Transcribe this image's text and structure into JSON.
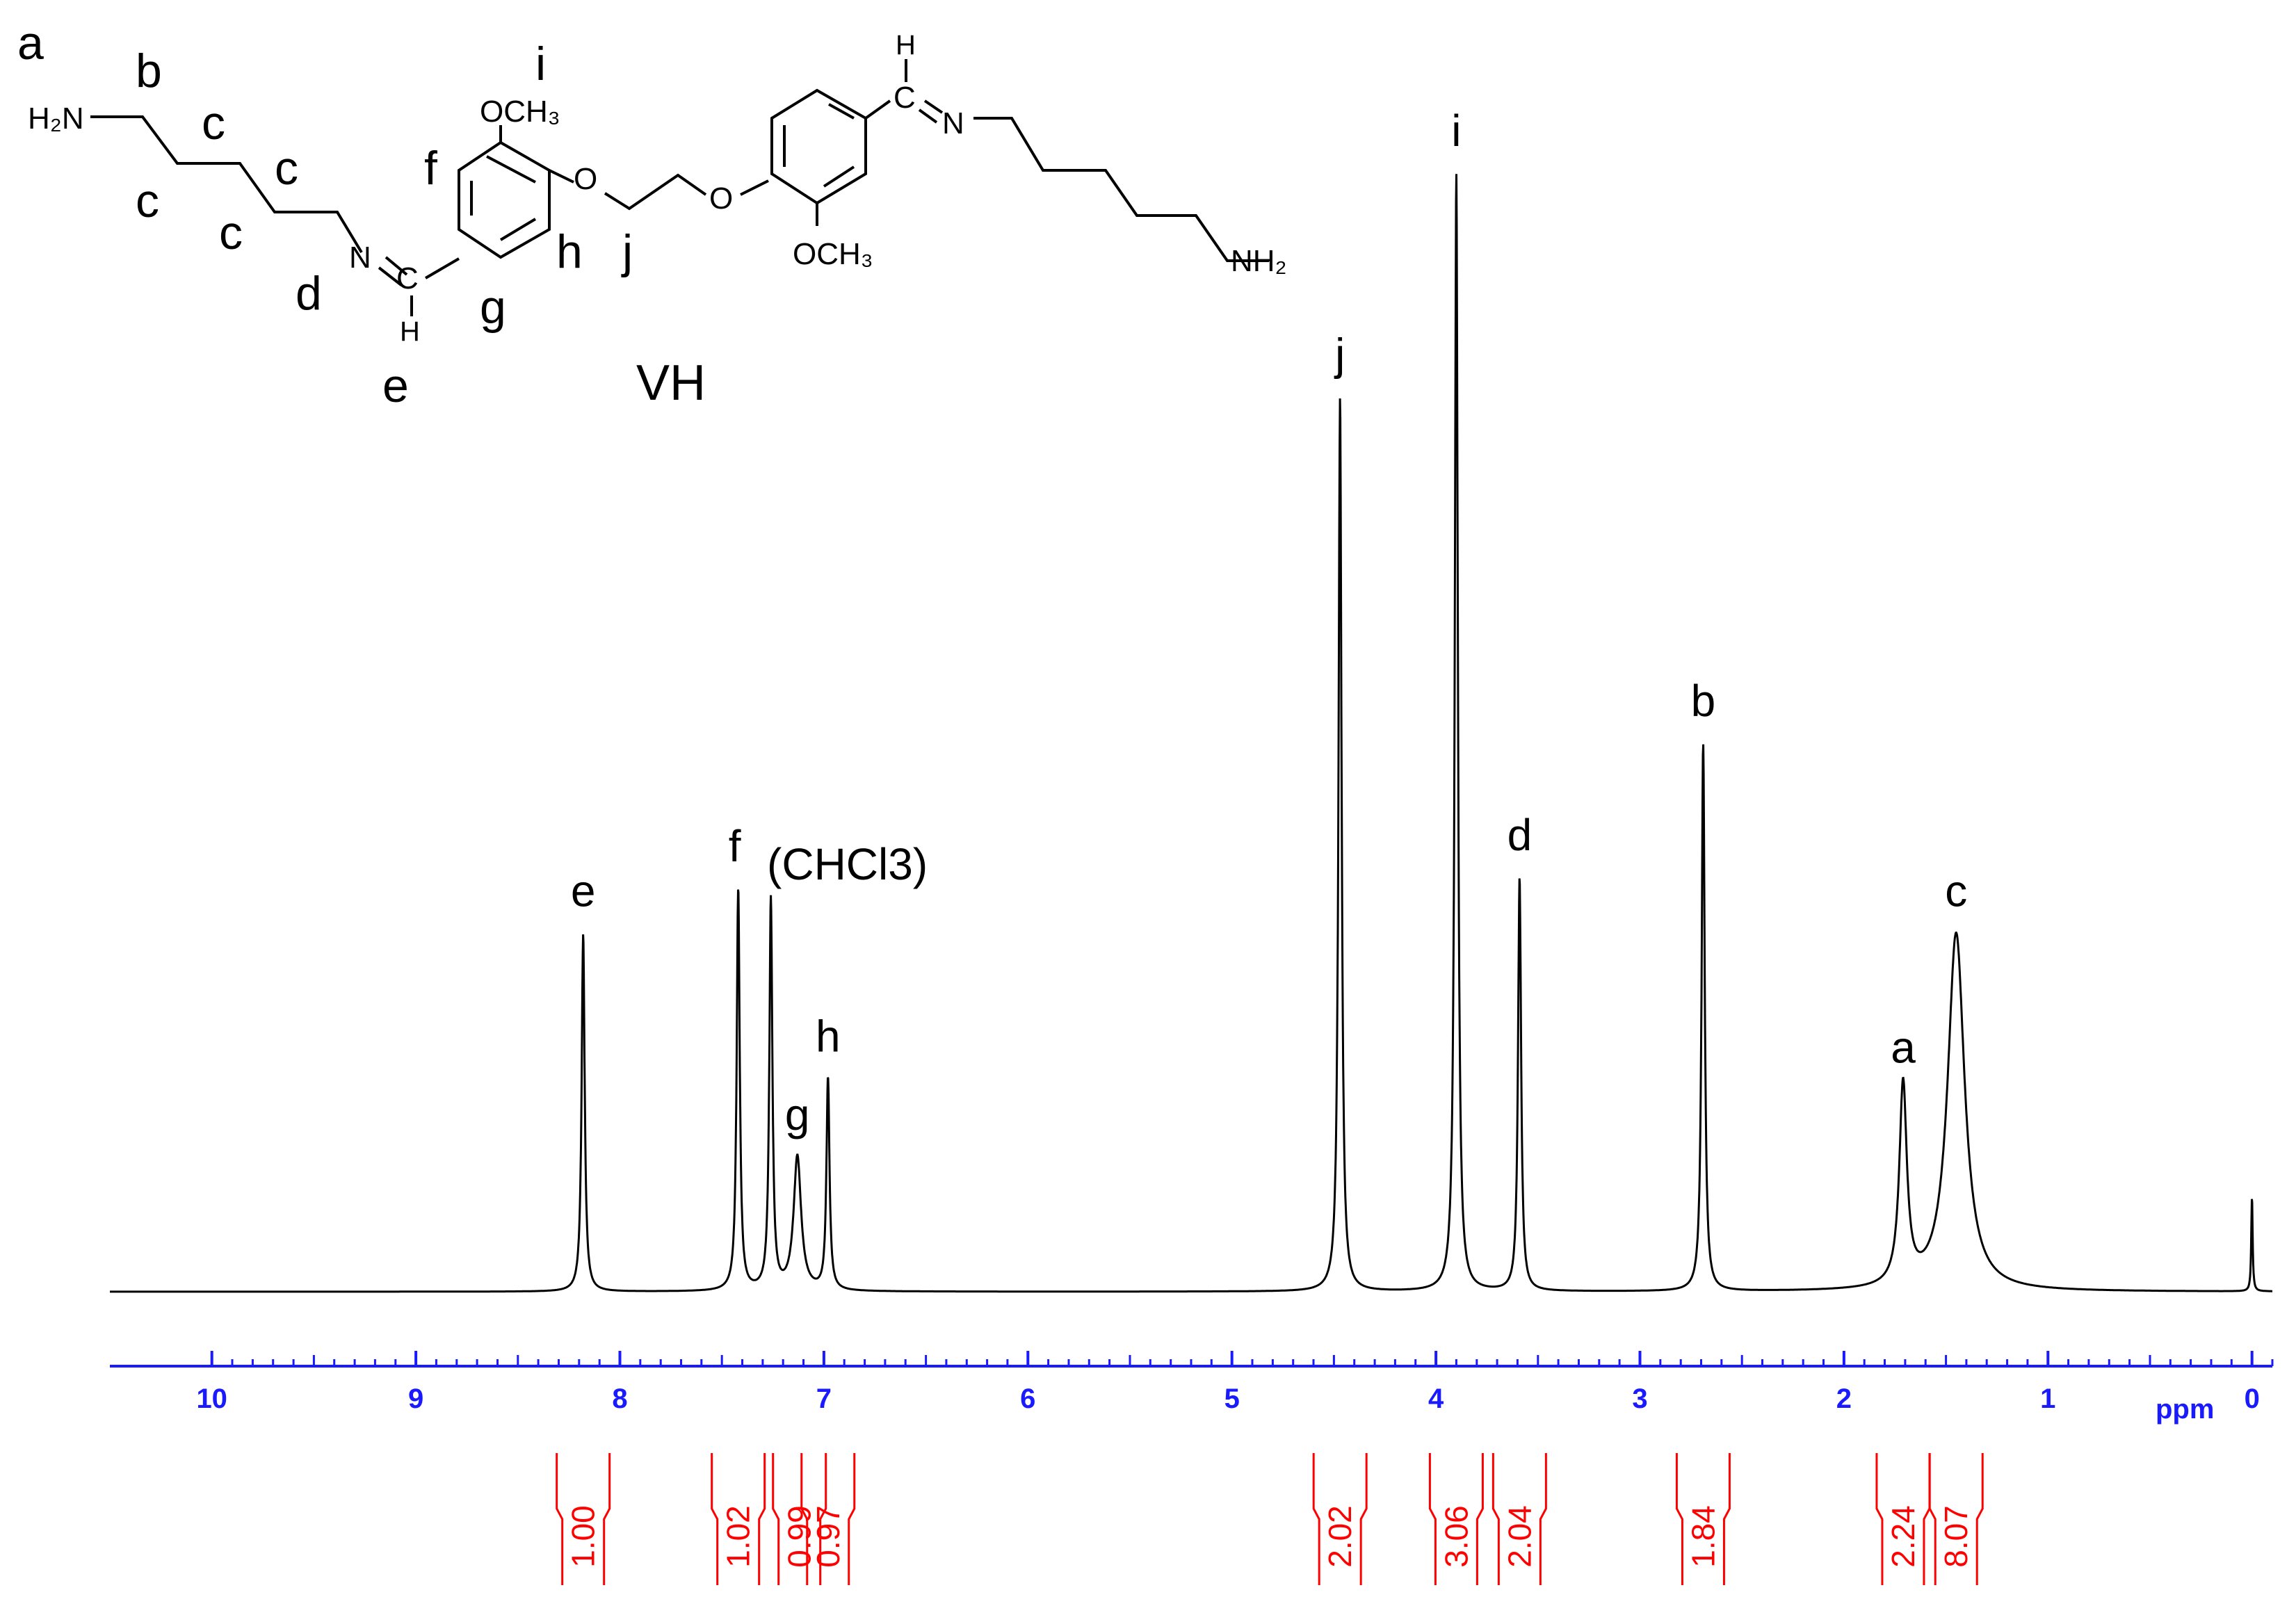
{
  "chart_data": {
    "type": "line",
    "title": "",
    "xlabel": "ppm",
    "ylabel": "",
    "xlim": [
      10.5,
      -0.1
    ],
    "x_reversed": true,
    "grid": false,
    "x_ticks": [
      "10",
      "9",
      "8",
      "7",
      "6",
      "5",
      "4",
      "3",
      "2",
      "1",
      "0"
    ],
    "x_tick_values": [
      10,
      9,
      8,
      7,
      6,
      5,
      4,
      3,
      2,
      1,
      0
    ],
    "peaks": [
      {
        "label": "e",
        "ppm": 8.18,
        "height": 0.32
      },
      {
        "label": "f",
        "ppm": 7.42,
        "height": 0.36
      },
      {
        "label": "(CHCl3)",
        "ppm": 7.26,
        "height": 0.35
      },
      {
        "label": "g",
        "ppm": 7.13,
        "height": 0.12
      },
      {
        "label": "h",
        "ppm": 6.98,
        "height": 0.19
      },
      {
        "label": "j",
        "ppm": 4.47,
        "height": 0.8
      },
      {
        "label": "i",
        "ppm": 3.9,
        "height": 1.0
      },
      {
        "label": "d",
        "ppm": 3.59,
        "height": 0.37
      },
      {
        "label": "b",
        "ppm": 2.69,
        "height": 0.49
      },
      {
        "label": "a",
        "ppm": 1.71,
        "height": 0.18
      },
      {
        "label": "c",
        "ppm": 1.45,
        "height": 0.32
      },
      {
        "label": "",
        "ppm": 0.0,
        "height": 0.085
      }
    ],
    "integrals": [
      {
        "value": "1.00",
        "ppm": 8.18
      },
      {
        "value": "1.02",
        "ppm": 7.42
      },
      {
        "value": "0.99",
        "ppm": 7.12
      },
      {
        "value": "0.97",
        "ppm": 6.98
      },
      {
        "value": "2.02",
        "ppm": 4.47
      },
      {
        "value": "3.06",
        "ppm": 3.9
      },
      {
        "value": "2.04",
        "ppm": 3.59
      },
      {
        "value": "1.84",
        "ppm": 2.69
      },
      {
        "value": "2.24",
        "ppm": 1.71
      },
      {
        "value": "8.07",
        "ppm": 1.45
      }
    ]
  },
  "structure": {
    "name": "VH",
    "h2n_left": "H₂N",
    "nh2_right": "NH₂",
    "och3_top": "OCH₃",
    "och3_bottom": "OCH₃",
    "o1": "O",
    "o2": "O",
    "n_left": "N",
    "n_right": "N",
    "c_left": "C",
    "c_right": "C",
    "h_left": "H",
    "h_right": "H",
    "labels": {
      "a": "a",
      "b": "b",
      "c1": "c",
      "c2": "c",
      "c3": "c",
      "c4": "c",
      "d": "d",
      "e": "e",
      "f": "f",
      "g": "g",
      "h": "h",
      "i": "i",
      "j": "j"
    }
  },
  "colors": {
    "spectrum": "#000000",
    "axis": "#1a1aff",
    "integral": "#ff0000"
  }
}
